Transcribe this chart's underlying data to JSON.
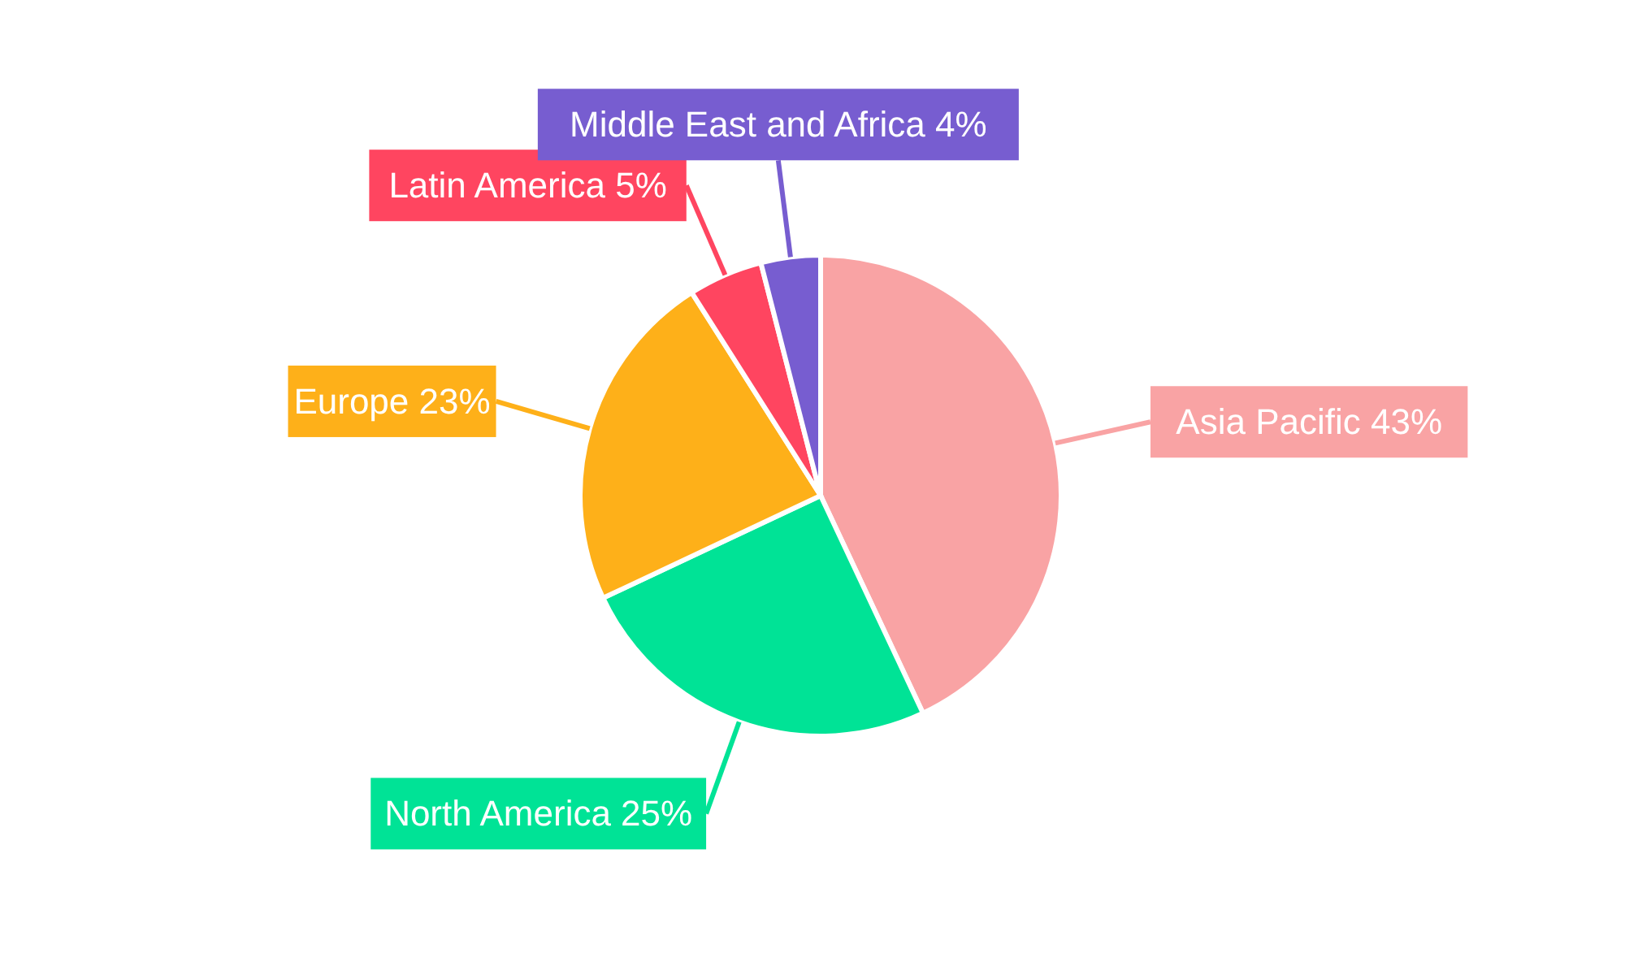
{
  "chart_data": {
    "type": "pie",
    "categories": [
      "Asia Pacific",
      "North America",
      "Europe",
      "Latin America",
      "Middle East and Africa"
    ],
    "values": [
      43,
      25,
      23,
      5,
      4
    ],
    "value_labels": [
      "43%",
      "25%",
      "23%",
      "5%",
      "4%"
    ],
    "colors": [
      "#f9a3a4",
      "#00e396",
      "#feb019",
      "#ff4560",
      "#775dd0"
    ],
    "legend": false
  }
}
